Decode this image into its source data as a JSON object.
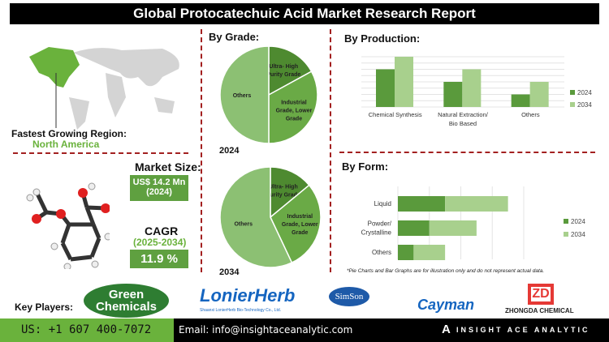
{
  "title": "Global Protocatechuic Acid Market Research Report",
  "region": {
    "label": "Fastest Growing Region:",
    "value": "North America"
  },
  "market_size": {
    "label": "Market Size:",
    "value": "US$ 14.2 Mn",
    "year": "(2024)"
  },
  "cagr": {
    "label": "CAGR",
    "period": "(2025-2034)",
    "value": "11.9 %"
  },
  "colors": {
    "dark_green": "#5a9a3c",
    "mid_green": "#6aaa46",
    "light_green": "#a8d08d",
    "pie_others": "#8cc073",
    "pie_ultra": "#4e8a30",
    "accent_red": "#a32020"
  },
  "chart_data": [
    {
      "type": "pie",
      "title": "By Grade:",
      "caption": "2024",
      "labels": [
        "Ultra- High Purity Grade",
        "Industrial Grade, Lower Grade",
        "Others"
      ],
      "values": [
        17,
        33,
        50
      ]
    },
    {
      "type": "pie",
      "caption": "2034",
      "labels": [
        "Ultra- High Purity Grade",
        "Industrial Grade, Lower Grade",
        "Others"
      ],
      "values": [
        14,
        29,
        57
      ]
    },
    {
      "type": "bar",
      "title": "By  Production:",
      "categories": [
        "Chemical Synthesis",
        "Natural Extraction/ Bio Based",
        "Others"
      ],
      "series": [
        {
          "name": "2024",
          "values": [
            6,
            4,
            2
          ]
        },
        {
          "name": "2034",
          "values": [
            8,
            6,
            4
          ]
        }
      ],
      "ylim": [
        0,
        8
      ],
      "grid": true,
      "legend": "right"
    },
    {
      "type": "bar",
      "orientation": "horizontal",
      "stacked": true,
      "title": "By Form:",
      "categories": [
        "Liquid",
        "Powder/ Crystalline",
        "Others"
      ],
      "series": [
        {
          "name": "2024",
          "values": [
            1.5,
            1,
            0.5
          ]
        },
        {
          "name": "2034",
          "values": [
            2,
            1.5,
            1
          ]
        }
      ],
      "xlim": [
        0,
        4
      ],
      "grid": true,
      "legend": "right"
    }
  ],
  "note": "*Pie Charts and Bar Graphs are for illustration only and do not represent actual data.",
  "key_players": {
    "label": "Key Players:",
    "logos": [
      "Green Chemicals",
      "LonierHerb",
      "Shaanxi LonierHerb Bio-Technology Co., Ltd.",
      "SimSon",
      "Cayman",
      "CHEMICAL",
      "ZHONGDA CHEMICAL"
    ]
  },
  "footer": {
    "phone": "US: +1 607 400-7072",
    "email": "Email: info@insightaceanalytic.com",
    "brand": "INSIGHT ACE ANALYTIC"
  }
}
